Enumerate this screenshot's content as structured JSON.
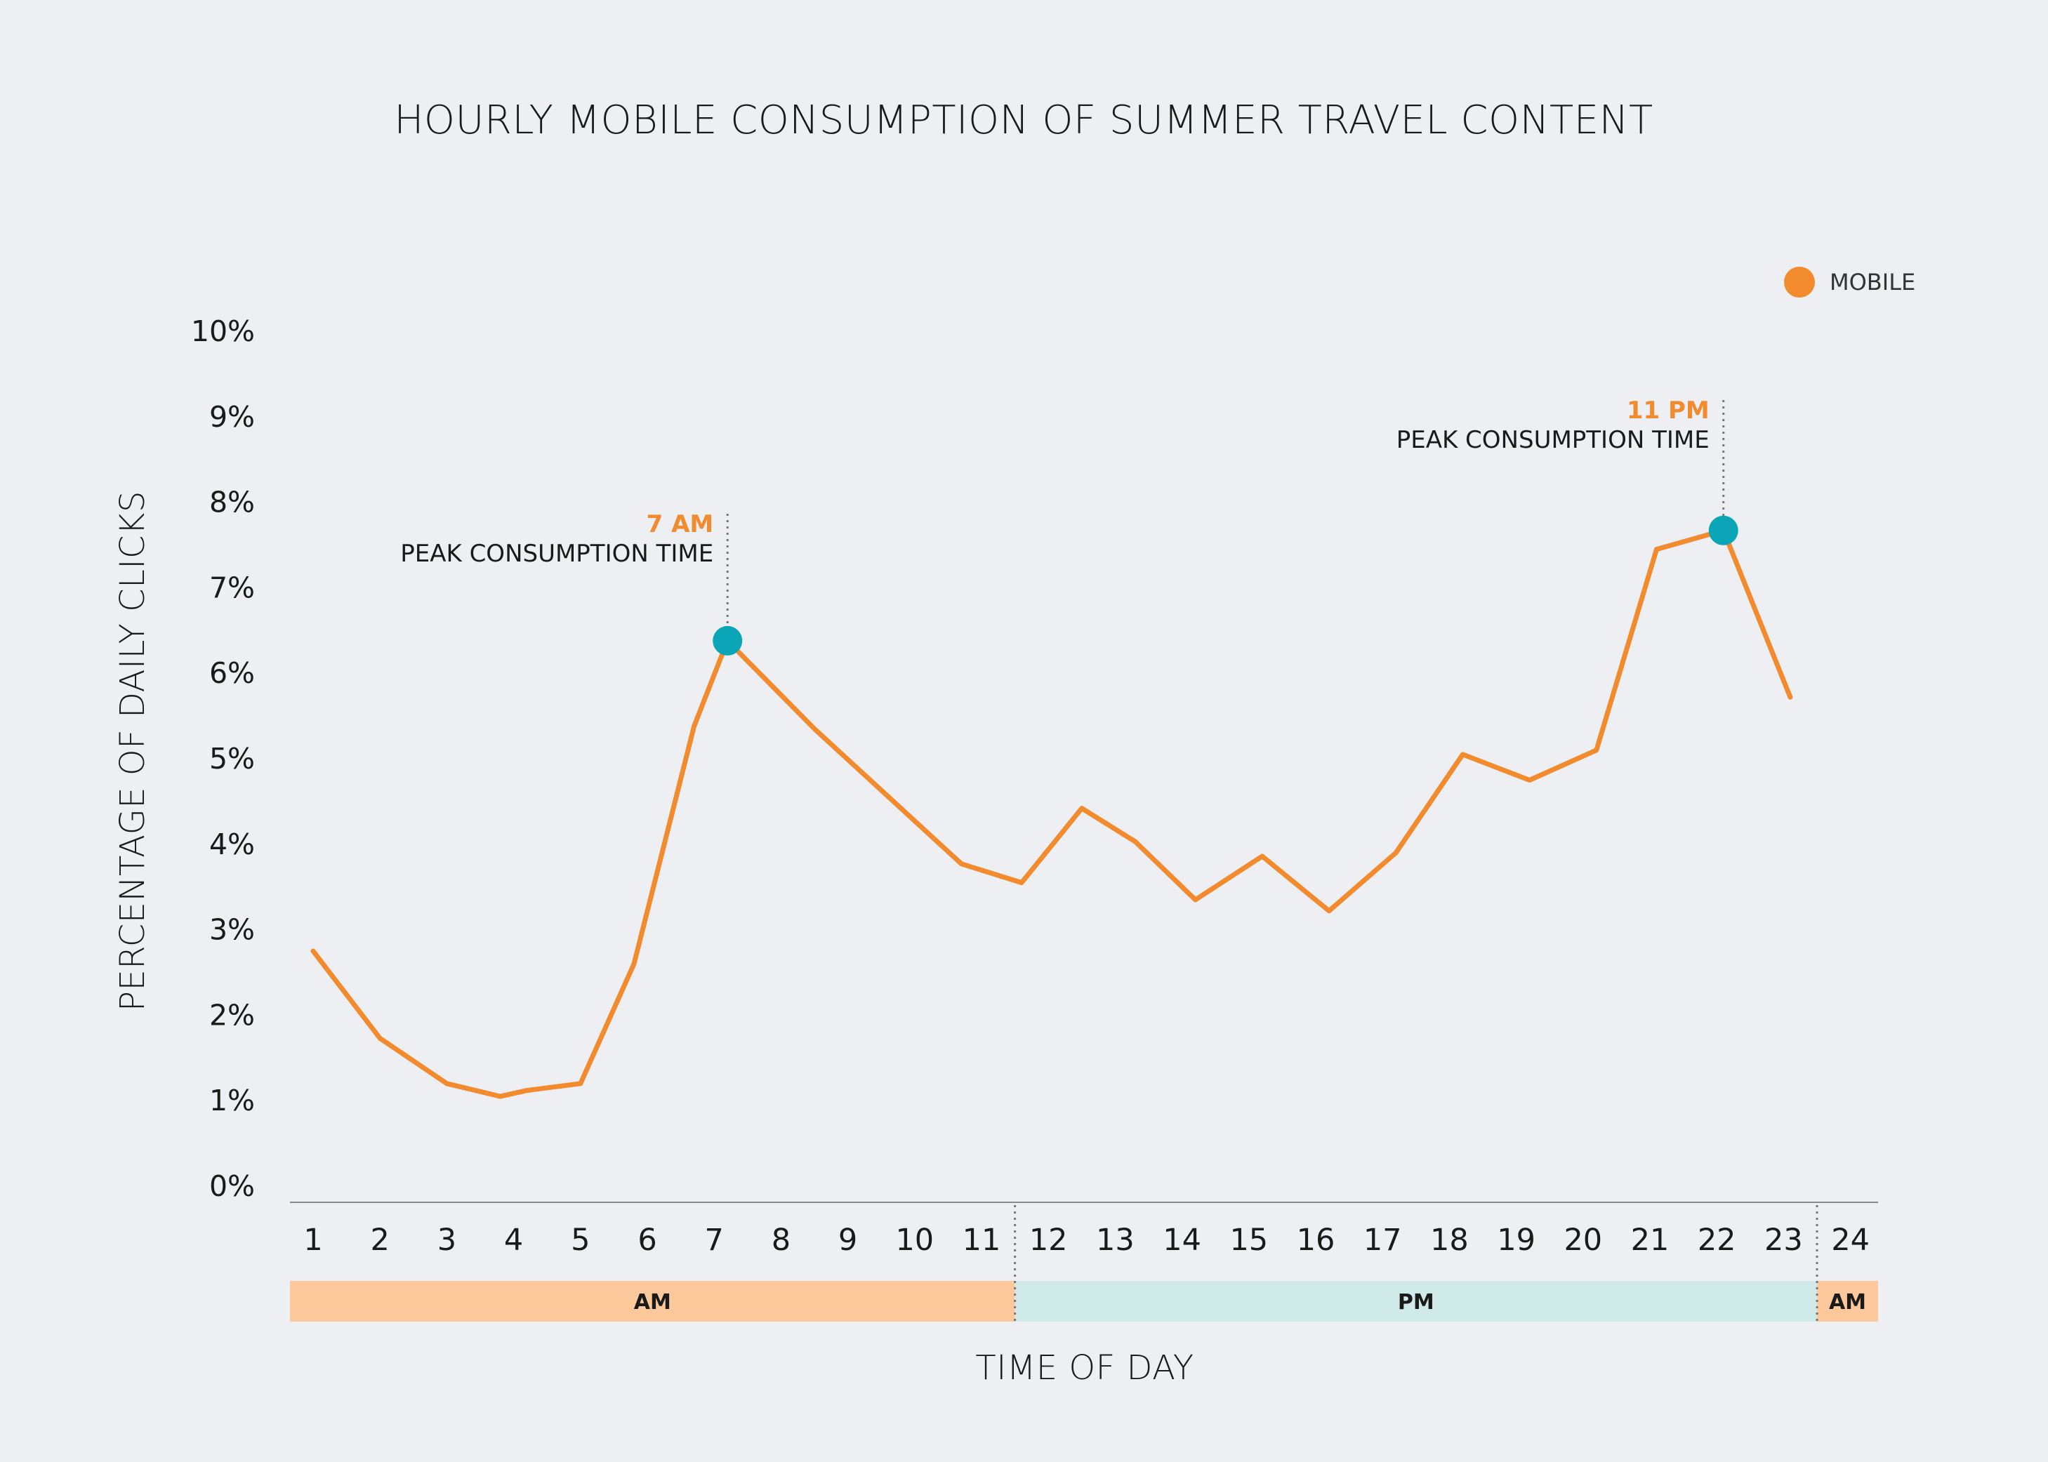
{
  "colors": {
    "background": "#eeeff2",
    "series": "#f28a2e",
    "peak_marker": "#0aa6b8",
    "am_band": "#fdc99c",
    "pm_band": "#cfeae8",
    "axis": "#8a8a8a",
    "annotation_time": "#f28a2e"
  },
  "chart_data": {
    "type": "line",
    "title": "HOURLY MOBILE CONSUMPTION OF SUMMER TRAVEL CONTENT",
    "xlabel": "TIME OF DAY",
    "ylabel": "PERCENTAGE OF DAILY CLICKS",
    "ylim": [
      0,
      10
    ],
    "y_ticks": [
      "0%",
      "1%",
      "2%",
      "3%",
      "4%",
      "5%",
      "6%",
      "7%",
      "8%",
      "9%",
      "10%"
    ],
    "x_ticks": [
      "1",
      "2",
      "3",
      "4",
      "5",
      "6",
      "7",
      "8",
      "9",
      "10",
      "11",
      "12",
      "13",
      "14",
      "15",
      "16",
      "17",
      "18",
      "19",
      "20",
      "21",
      "22",
      "23",
      "24"
    ],
    "legend": {
      "position": "top-right",
      "entries": [
        "MOBILE"
      ]
    },
    "series": [
      {
        "name": "MOBILE",
        "points": [
          [
            1,
            2.75
          ],
          [
            2,
            1.73
          ],
          [
            3,
            1.2
          ],
          [
            3.8,
            1.05
          ],
          [
            4.2,
            1.12
          ],
          [
            5,
            1.2
          ],
          [
            5.8,
            2.6
          ],
          [
            6.7,
            5.38
          ],
          [
            7.2,
            6.38
          ],
          [
            8.5,
            5.35
          ],
          [
            10.7,
            3.77
          ],
          [
            11.6,
            3.55
          ],
          [
            12.5,
            4.42
          ],
          [
            13.3,
            4.03
          ],
          [
            14.2,
            3.35
          ],
          [
            15.2,
            3.86
          ],
          [
            16.2,
            3.22
          ],
          [
            17.2,
            3.9
          ],
          [
            18.2,
            5.05
          ],
          [
            19.2,
            4.75
          ],
          [
            20.2,
            5.1
          ],
          [
            21.1,
            7.45
          ],
          [
            22.1,
            7.67
          ],
          [
            23.1,
            5.72
          ]
        ]
      }
    ],
    "annotations": [
      {
        "time": "7 AM",
        "note": "PEAK CONSUMPTION TIME",
        "x": 7.2,
        "y": 6.38
      },
      {
        "time": "11 PM",
        "note": "PEAK CONSUMPTION TIME",
        "x": 22.1,
        "y": 7.67
      }
    ],
    "period_bands": [
      {
        "label": "AM",
        "from": 0.5,
        "to": 11.5
      },
      {
        "label": "PM",
        "from": 11.5,
        "to": 23.5
      },
      {
        "label": "AM",
        "from": 23.5,
        "to": 24.5
      }
    ]
  }
}
